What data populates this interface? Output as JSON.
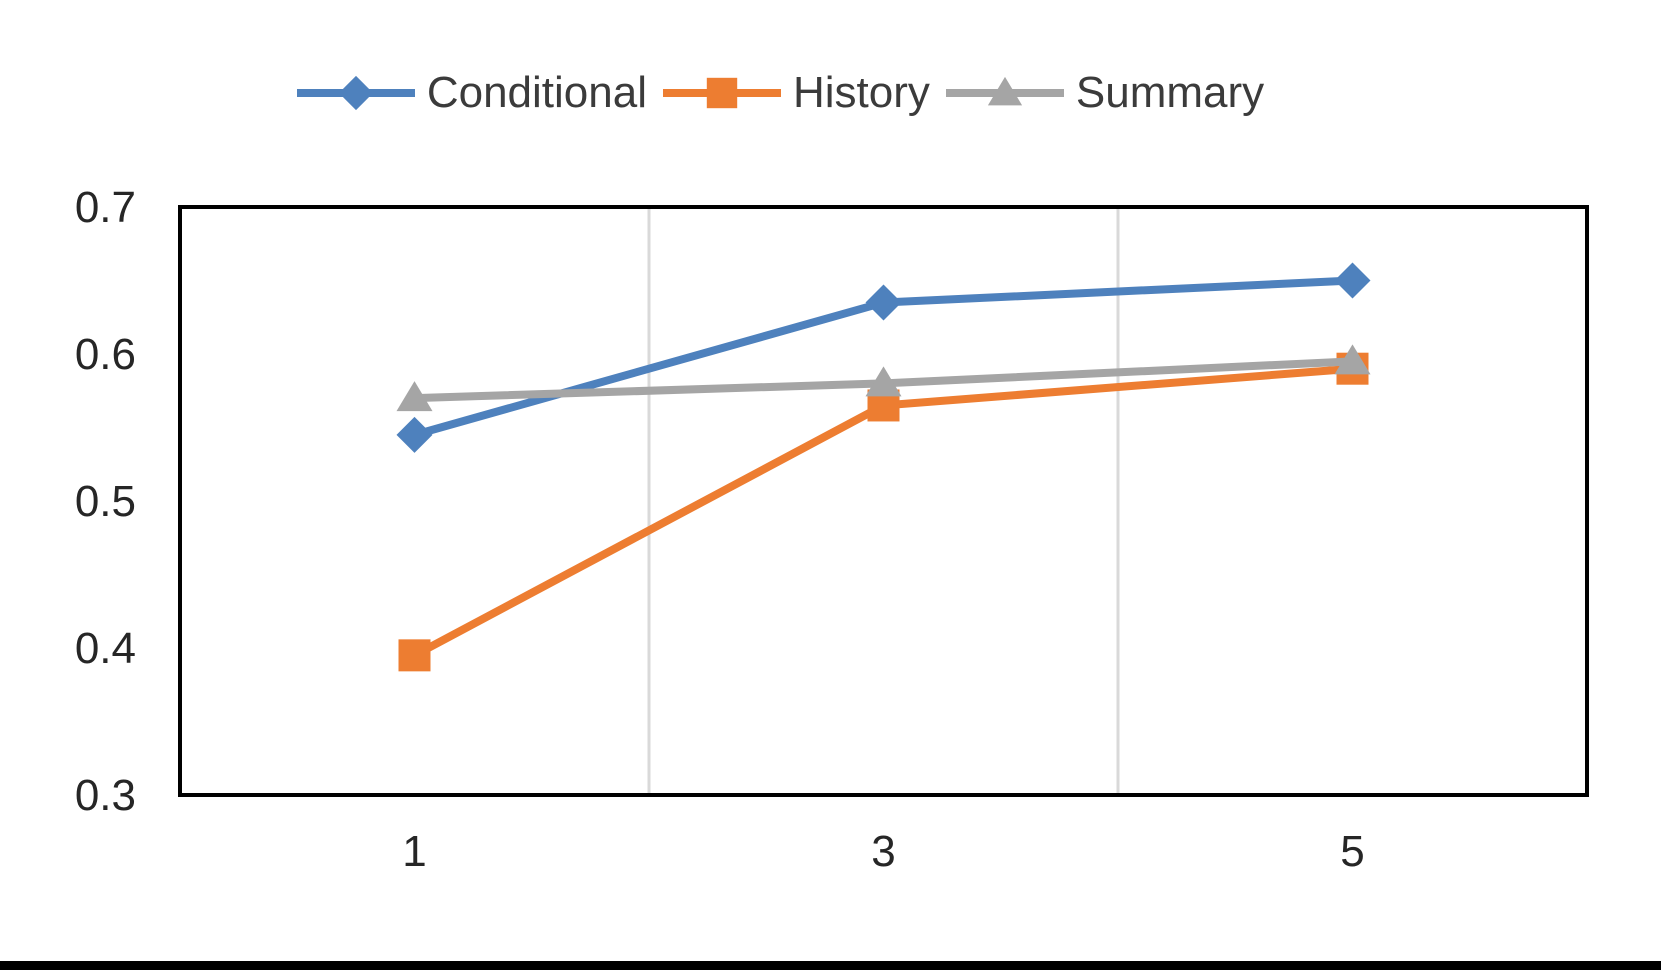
{
  "chart_data": {
    "type": "line",
    "title": "",
    "xlabel": "",
    "ylabel": "",
    "categories": [
      "1",
      "3",
      "5"
    ],
    "series": [
      {
        "name": "Conditional",
        "marker": "diamond",
        "color": "#4E81BD",
        "values": [
          0.545,
          0.635,
          0.65
        ]
      },
      {
        "name": "History",
        "marker": "square",
        "color": "#ED7D31",
        "values": [
          0.395,
          0.565,
          0.59
        ]
      },
      {
        "name": "Summary",
        "marker": "triangle",
        "color": "#A5A5A5",
        "values": [
          0.57,
          0.58,
          0.595
        ]
      }
    ],
    "ylim": [
      0.3,
      0.7
    ],
    "y_ticks": [
      0.3,
      0.4,
      0.5,
      0.6,
      0.7
    ],
    "y_tick_labels": [
      "0.3",
      "0.4",
      "0.5",
      "0.6",
      "0.7"
    ],
    "legend_position": "top",
    "grid": {
      "vertical": true,
      "horizontal": false,
      "color": "#D9D9D9"
    },
    "styles": {
      "plot_border_color": "#000000",
      "tick_label_color": "#262626",
      "legend_text_color": "#3B3B3B",
      "background": "#FFFFFF",
      "bottom_bar_color": "#000000"
    }
  }
}
